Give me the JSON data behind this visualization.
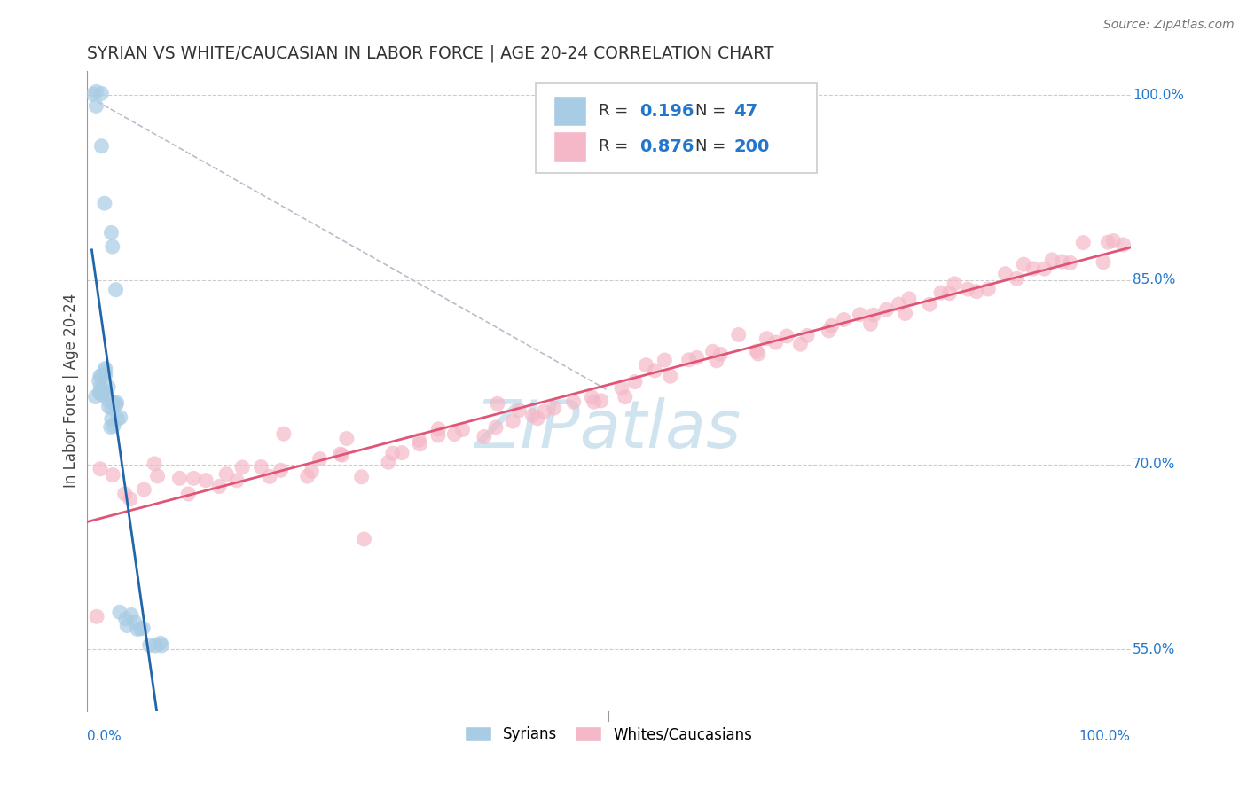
{
  "title": "SYRIAN VS WHITE/CAUCASIAN IN LABOR FORCE | AGE 20-24 CORRELATION CHART",
  "source": "Source: ZipAtlas.com",
  "ylabel": "In Labor Force | Age 20-24",
  "xmin": 0.0,
  "xmax": 1.0,
  "ymin": 0.5,
  "ymax": 1.02,
  "yticks": [
    0.55,
    0.7,
    0.85,
    1.0
  ],
  "ytick_labels": [
    "55.0%",
    "70.0%",
    "85.0%",
    "100.0%"
  ],
  "grid_color": "#cccccc",
  "background_color": "#ffffff",
  "syrian_color": "#a8cce4",
  "white_color": "#f4b8c8",
  "syrian_line_color": "#2266aa",
  "white_line_color": "#e05575",
  "syrian_R": 0.196,
  "syrian_N": 47,
  "white_R": 0.876,
  "white_N": 200,
  "legend_color": "#2277cc",
  "watermark": "ZIPatlas",
  "watermark_color": "#d0e4f0",
  "diag_color": "#bbbbcc",
  "syrian_scatter_x": [
    0.01,
    0.011,
    0.012,
    0.012,
    0.013,
    0.013,
    0.014,
    0.014,
    0.015,
    0.015,
    0.016,
    0.016,
    0.017,
    0.018,
    0.019,
    0.02,
    0.021,
    0.022,
    0.023,
    0.024,
    0.025,
    0.026,
    0.027,
    0.028,
    0.03,
    0.032,
    0.035,
    0.038,
    0.04,
    0.042,
    0.045,
    0.048,
    0.05,
    0.055,
    0.06,
    0.065,
    0.07,
    0.075,
    0.008,
    0.009,
    0.01,
    0.012,
    0.015,
    0.018,
    0.02,
    0.025,
    0.03
  ],
  "syrian_scatter_y": [
    0.755,
    0.76,
    0.765,
    0.77,
    0.758,
    0.762,
    0.76,
    0.755,
    0.77,
    0.758,
    0.77,
    0.762,
    0.775,
    0.778,
    0.765,
    0.76,
    0.75,
    0.748,
    0.742,
    0.738,
    0.732,
    0.746,
    0.742,
    0.735,
    0.74,
    0.74,
    0.578,
    0.578,
    0.576,
    0.572,
    0.57,
    0.568,
    0.568,
    0.564,
    0.558,
    0.556,
    0.552,
    0.55,
    1.0,
    1.0,
    1.0,
    1.0,
    0.96,
    0.92,
    0.885,
    0.87,
    0.84
  ],
  "white_scatter_x": [
    0.003,
    0.015,
    0.025,
    0.035,
    0.045,
    0.055,
    0.065,
    0.075,
    0.085,
    0.095,
    0.105,
    0.115,
    0.125,
    0.135,
    0.145,
    0.155,
    0.165,
    0.175,
    0.185,
    0.195,
    0.205,
    0.215,
    0.225,
    0.235,
    0.245,
    0.255,
    0.265,
    0.275,
    0.285,
    0.295,
    0.305,
    0.315,
    0.325,
    0.335,
    0.345,
    0.355,
    0.365,
    0.375,
    0.385,
    0.395,
    0.405,
    0.415,
    0.425,
    0.435,
    0.445,
    0.455,
    0.465,
    0.475,
    0.485,
    0.495,
    0.505,
    0.515,
    0.525,
    0.535,
    0.545,
    0.555,
    0.565,
    0.575,
    0.585,
    0.595,
    0.605,
    0.615,
    0.625,
    0.635,
    0.645,
    0.655,
    0.665,
    0.675,
    0.685,
    0.695,
    0.705,
    0.715,
    0.725,
    0.735,
    0.745,
    0.755,
    0.765,
    0.775,
    0.785,
    0.795,
    0.805,
    0.815,
    0.825,
    0.835,
    0.845,
    0.855,
    0.865,
    0.875,
    0.885,
    0.895,
    0.905,
    0.915,
    0.925,
    0.935,
    0.945,
    0.955,
    0.965,
    0.975,
    0.985,
    0.995
  ],
  "white_scatter_y": [
    0.58,
    0.695,
    0.69,
    0.682,
    0.67,
    0.682,
    0.695,
    0.69,
    0.682,
    0.678,
    0.69,
    0.686,
    0.678,
    0.69,
    0.692,
    0.697,
    0.698,
    0.692,
    0.698,
    0.718,
    0.692,
    0.698,
    0.702,
    0.708,
    0.708,
    0.718,
    0.688,
    0.638,
    0.698,
    0.708,
    0.712,
    0.718,
    0.722,
    0.728,
    0.728,
    0.732,
    0.728,
    0.728,
    0.738,
    0.748,
    0.738,
    0.742,
    0.742,
    0.742,
    0.748,
    0.748,
    0.752,
    0.758,
    0.752,
    0.758,
    0.762,
    0.762,
    0.768,
    0.778,
    0.772,
    0.778,
    0.778,
    0.782,
    0.782,
    0.788,
    0.788,
    0.788,
    0.798,
    0.798,
    0.788,
    0.798,
    0.802,
    0.802,
    0.802,
    0.808,
    0.812,
    0.812,
    0.818,
    0.818,
    0.818,
    0.822,
    0.822,
    0.828,
    0.828,
    0.832,
    0.832,
    0.838,
    0.838,
    0.842,
    0.842,
    0.848,
    0.848,
    0.852,
    0.852,
    0.858,
    0.858,
    0.862,
    0.862,
    0.868,
    0.872,
    0.872,
    0.872,
    0.878,
    0.878,
    0.878
  ]
}
